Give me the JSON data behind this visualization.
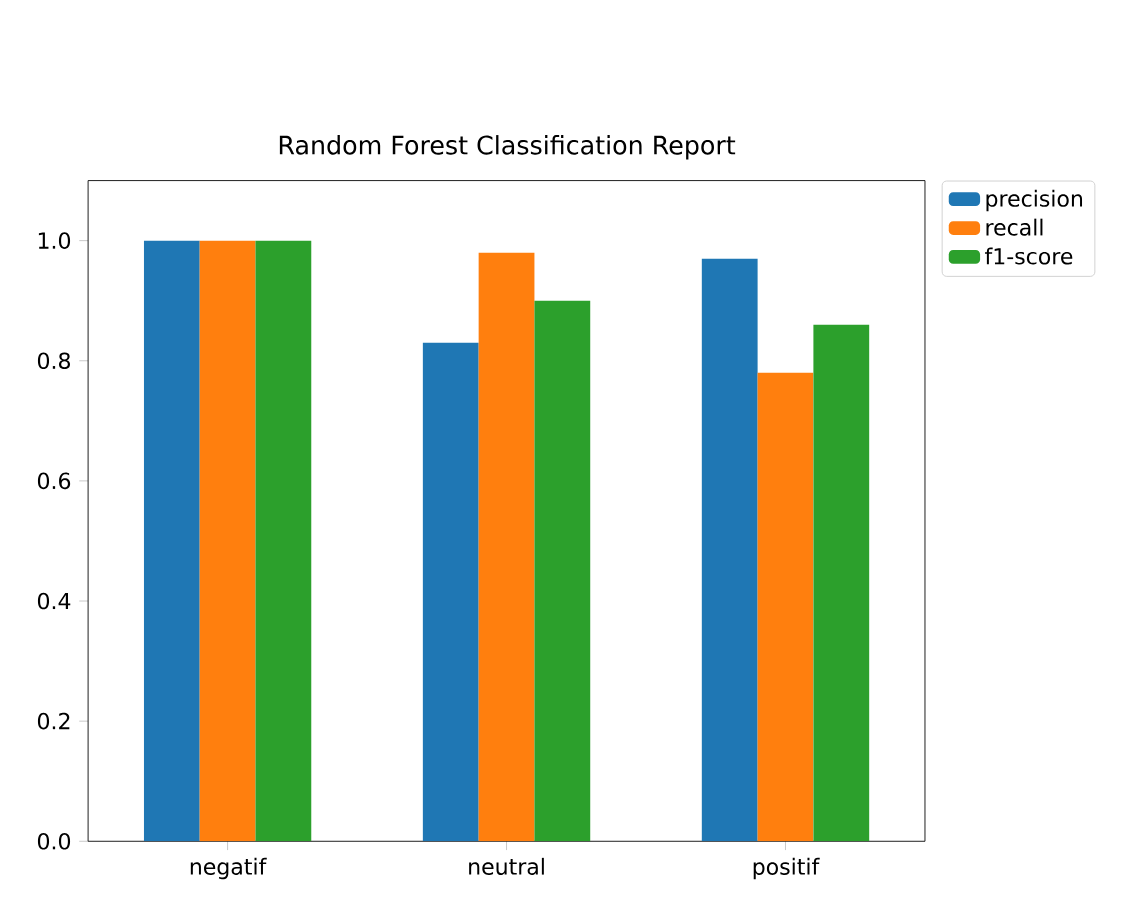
{
  "chart_data": {
    "type": "bar",
    "title": "Random Forest Classification Report",
    "categories": [
      "negatif",
      "neutral",
      "positif"
    ],
    "series": [
      {
        "name": "precision",
        "color": "#1f77b4",
        "values": [
          1.0,
          0.83,
          0.97
        ]
      },
      {
        "name": "recall",
        "color": "#ff7f0e",
        "values": [
          1.0,
          0.98,
          0.78
        ]
      },
      {
        "name": "f1-score",
        "color": "#2ca02c",
        "values": [
          1.0,
          0.9,
          0.86
        ]
      }
    ],
    "ylim": [
      0,
      1.1
    ],
    "yticks": [
      {
        "value": 0,
        "label": "0.0"
      },
      {
        "value": 0.2,
        "label": "0.2"
      },
      {
        "value": 0.4,
        "label": "0.4"
      },
      {
        "value": 0.6,
        "label": "0.6"
      },
      {
        "value": 0.8,
        "label": "0.8"
      },
      {
        "value": 1.0,
        "label": "1.0"
      }
    ],
    "legend": "top right",
    "grid": false
  }
}
